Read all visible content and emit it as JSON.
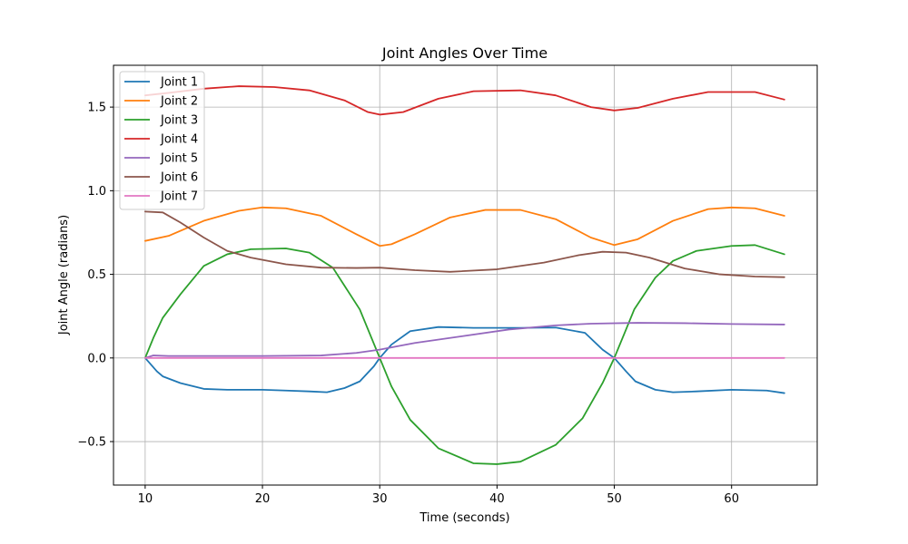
{
  "chart_data": {
    "type": "line",
    "title": "Joint Angles Over Time",
    "xlabel": "Time (seconds)",
    "ylabel": "Joint Angle (radians)",
    "xlim": [
      7.3,
      67.3
    ],
    "ylim": [
      -0.76,
      1.75
    ],
    "xticks": [
      10,
      20,
      30,
      40,
      50,
      60
    ],
    "yticks": [
      -0.5,
      0.0,
      0.5,
      1.0,
      1.5
    ],
    "xtick_labels": [
      "10",
      "20",
      "30",
      "40",
      "50",
      "60"
    ],
    "ytick_labels": [
      "−0.5",
      "0.0",
      "0.5",
      "1.0",
      "1.5"
    ],
    "grid": true,
    "legend_position": "upper-left",
    "series": [
      {
        "name": "Joint 1",
        "color": "#1f77b4",
        "points": [
          [
            10,
            0.0
          ],
          [
            11,
            -0.08
          ],
          [
            11.5,
            -0.11
          ],
          [
            13,
            -0.15
          ],
          [
            15,
            -0.185
          ],
          [
            17,
            -0.19
          ],
          [
            20,
            -0.19
          ],
          [
            22,
            -0.195
          ],
          [
            24,
            -0.2
          ],
          [
            25.5,
            -0.205
          ],
          [
            27,
            -0.18
          ],
          [
            28.3,
            -0.14
          ],
          [
            29.5,
            -0.05
          ],
          [
            30,
            0.0
          ],
          [
            31,
            0.08
          ],
          [
            32.6,
            0.16
          ],
          [
            35,
            0.185
          ],
          [
            38,
            0.18
          ],
          [
            42,
            0.18
          ],
          [
            45,
            0.182
          ],
          [
            47.5,
            0.15
          ],
          [
            49,
            0.05
          ],
          [
            50,
            0.0
          ],
          [
            51,
            -0.08
          ],
          [
            51.8,
            -0.14
          ],
          [
            53.5,
            -0.19
          ],
          [
            55,
            -0.205
          ],
          [
            57,
            -0.2
          ],
          [
            60,
            -0.19
          ],
          [
            63,
            -0.195
          ],
          [
            64.5,
            -0.21
          ]
        ]
      },
      {
        "name": "Joint 2",
        "color": "#ff7f0e",
        "points": [
          [
            10,
            0.7
          ],
          [
            12,
            0.73
          ],
          [
            15,
            0.82
          ],
          [
            18,
            0.88
          ],
          [
            20,
            0.9
          ],
          [
            22,
            0.895
          ],
          [
            25,
            0.85
          ],
          [
            28,
            0.74
          ],
          [
            30,
            0.67
          ],
          [
            31,
            0.68
          ],
          [
            33,
            0.74
          ],
          [
            36,
            0.84
          ],
          [
            39,
            0.885
          ],
          [
            42,
            0.885
          ],
          [
            45,
            0.83
          ],
          [
            48,
            0.72
          ],
          [
            50,
            0.675
          ],
          [
            52,
            0.71
          ],
          [
            55,
            0.82
          ],
          [
            58,
            0.89
          ],
          [
            60,
            0.9
          ],
          [
            62,
            0.895
          ],
          [
            64.5,
            0.85
          ]
        ]
      },
      {
        "name": "Joint 3",
        "color": "#2ca02c",
        "points": [
          [
            10,
            0.0
          ],
          [
            10.7,
            0.12
          ],
          [
            11.5,
            0.24
          ],
          [
            13,
            0.38
          ],
          [
            15,
            0.55
          ],
          [
            17,
            0.62
          ],
          [
            19,
            0.65
          ],
          [
            22,
            0.655
          ],
          [
            24,
            0.63
          ],
          [
            26,
            0.54
          ],
          [
            28.3,
            0.29
          ],
          [
            30,
            0.0
          ],
          [
            31,
            -0.17
          ],
          [
            32.6,
            -0.37
          ],
          [
            35,
            -0.54
          ],
          [
            38,
            -0.63
          ],
          [
            40,
            -0.635
          ],
          [
            42,
            -0.62
          ],
          [
            45,
            -0.52
          ],
          [
            47.3,
            -0.36
          ],
          [
            49,
            -0.15
          ],
          [
            50,
            0.0
          ],
          [
            51,
            0.17
          ],
          [
            51.7,
            0.29
          ],
          [
            53.5,
            0.48
          ],
          [
            55,
            0.58
          ],
          [
            57,
            0.64
          ],
          [
            60,
            0.67
          ],
          [
            62,
            0.675
          ],
          [
            64.5,
            0.62
          ]
        ]
      },
      {
        "name": "Joint 4",
        "color": "#d62728",
        "points": [
          [
            10,
            1.57
          ],
          [
            12,
            1.585
          ],
          [
            15,
            1.61
          ],
          [
            18,
            1.625
          ],
          [
            21,
            1.62
          ],
          [
            24,
            1.6
          ],
          [
            27,
            1.54
          ],
          [
            29,
            1.47
          ],
          [
            30,
            1.455
          ],
          [
            32,
            1.47
          ],
          [
            35,
            1.55
          ],
          [
            38,
            1.595
          ],
          [
            42,
            1.6
          ],
          [
            45,
            1.57
          ],
          [
            48,
            1.5
          ],
          [
            50,
            1.48
          ],
          [
            52,
            1.495
          ],
          [
            55,
            1.55
          ],
          [
            58,
            1.59
          ],
          [
            62,
            1.59
          ],
          [
            64.5,
            1.545
          ]
        ]
      },
      {
        "name": "Joint 5",
        "color": "#9467bd",
        "points": [
          [
            10,
            0.0
          ],
          [
            10.7,
            0.015
          ],
          [
            12,
            0.012
          ],
          [
            20,
            0.012
          ],
          [
            25,
            0.015
          ],
          [
            28,
            0.03
          ],
          [
            30,
            0.05
          ],
          [
            33,
            0.09
          ],
          [
            37,
            0.13
          ],
          [
            41,
            0.17
          ],
          [
            45,
            0.195
          ],
          [
            48,
            0.205
          ],
          [
            52,
            0.21
          ],
          [
            56,
            0.208
          ],
          [
            60,
            0.203
          ],
          [
            64.5,
            0.2
          ]
        ]
      },
      {
        "name": "Joint 6",
        "color": "#8c564b",
        "points": [
          [
            10,
            0.875
          ],
          [
            11.5,
            0.87
          ],
          [
            13,
            0.81
          ],
          [
            15,
            0.72
          ],
          [
            17,
            0.64
          ],
          [
            19,
            0.6
          ],
          [
            22,
            0.56
          ],
          [
            25,
            0.54
          ],
          [
            28,
            0.538
          ],
          [
            30,
            0.54
          ],
          [
            33,
            0.525
          ],
          [
            36,
            0.515
          ],
          [
            40,
            0.53
          ],
          [
            44,
            0.57
          ],
          [
            47,
            0.615
          ],
          [
            49,
            0.635
          ],
          [
            51,
            0.63
          ],
          [
            53,
            0.6
          ],
          [
            56,
            0.535
          ],
          [
            59,
            0.5
          ],
          [
            62,
            0.487
          ],
          [
            64.5,
            0.483
          ]
        ]
      },
      {
        "name": "Joint 7",
        "color": "#e377c2",
        "points": [
          [
            10,
            0.0
          ],
          [
            64.5,
            0.0
          ]
        ]
      }
    ]
  }
}
